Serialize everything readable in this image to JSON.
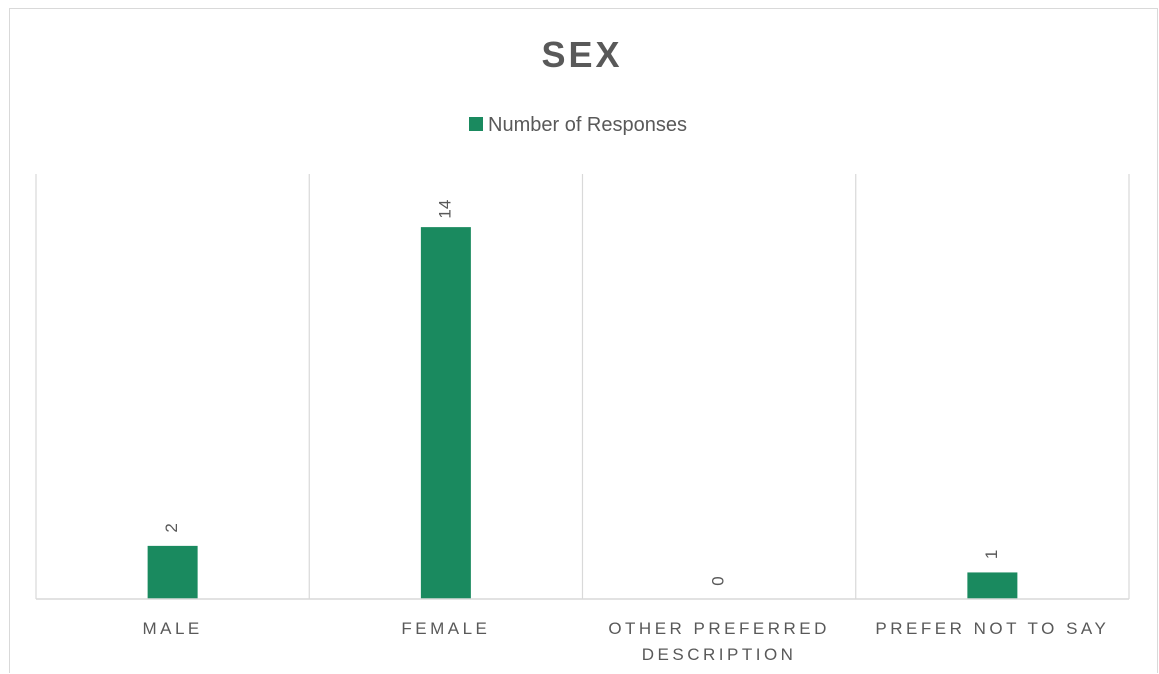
{
  "chart_data": {
    "type": "bar",
    "title": "SEX",
    "categories": [
      "MALE",
      "FEMALE",
      "OTHER PREFERRED DESCRIPTION",
      "PREFER NOT TO SAY"
    ],
    "category_lines": [
      [
        "MALE"
      ],
      [
        "FEMALE"
      ],
      [
        "OTHER PREFERRED",
        "DESCRIPTION"
      ],
      [
        "PREFER NOT TO SAY"
      ]
    ],
    "series": [
      {
        "name": "Number of Responses",
        "values": [
          2,
          14,
          0,
          1
        ],
        "color": "#1a8a5f"
      }
    ],
    "data_labels": [
      "2",
      "14",
      "0",
      "1"
    ],
    "ylim": [
      0,
      16
    ],
    "grid": "vertical category separators",
    "legend": "top-center",
    "data_label_orientation": "rotated"
  }
}
